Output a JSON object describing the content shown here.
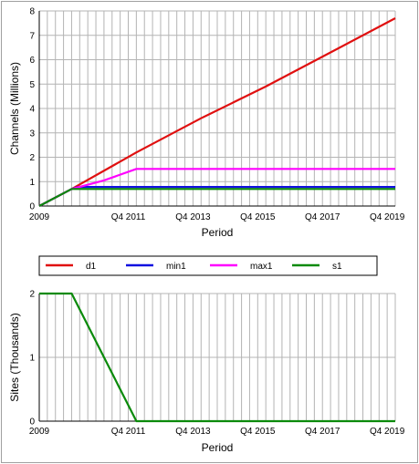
{
  "chart_data": [
    {
      "type": "line",
      "title": "",
      "xlabel": "Period",
      "ylabel": "Channels  (Millions)",
      "xlim": [
        2009,
        2020
      ],
      "ylim": [
        0,
        8
      ],
      "y_ticks": [
        "0",
        "1",
        "2",
        "3",
        "4",
        "5",
        "6",
        "7",
        "8"
      ],
      "x_tick_labels": [
        {
          "at": 2009,
          "label": "2009"
        },
        {
          "at": 2011.75,
          "label": "Q4 2011"
        },
        {
          "at": 2013.75,
          "label": "Q4 2013"
        },
        {
          "at": 2015.75,
          "label": "Q4 2015"
        },
        {
          "at": 2017.75,
          "label": "Q4 2017"
        },
        {
          "at": 2019.75,
          "label": "Q4 2019"
        }
      ],
      "grid": true,
      "series": [
        {
          "name": "d1",
          "color": "#e01010",
          "x": [
            2009,
            2010,
            2012,
            2014,
            2016,
            2018,
            2020
          ],
          "y": [
            0,
            0.7,
            2.2,
            3.6,
            4.9,
            6.3,
            7.7
          ]
        },
        {
          "name": "min1",
          "color": "#1010e0",
          "x": [
            2009,
            2010,
            2010.2,
            2020
          ],
          "y": [
            0,
            0.7,
            0.78,
            0.78
          ]
        },
        {
          "name": "max1",
          "color": "#ff00ff",
          "x": [
            2009,
            2010,
            2011,
            2012,
            2020
          ],
          "y": [
            0,
            0.7,
            1.05,
            1.52,
            1.52
          ]
        },
        {
          "name": "s1",
          "color": "#0a8a0a",
          "x": [
            2009,
            2010,
            2020
          ],
          "y": [
            0,
            0.7,
            0.7
          ]
        }
      ]
    },
    {
      "type": "line",
      "title": "",
      "xlabel": "Period",
      "ylabel": "Sites  (Thousands)",
      "xlim": [
        2009,
        2020
      ],
      "ylim": [
        0,
        2
      ],
      "y_ticks": [
        "0",
        "1",
        "2"
      ],
      "x_tick_labels": [
        {
          "at": 2009,
          "label": "2009"
        },
        {
          "at": 2011.75,
          "label": "Q4 2011"
        },
        {
          "at": 2013.75,
          "label": "Q4 2013"
        },
        {
          "at": 2015.75,
          "label": "Q4 2015"
        },
        {
          "at": 2017.75,
          "label": "Q4 2017"
        },
        {
          "at": 2019.75,
          "label": "Q4 2019"
        }
      ],
      "grid": true,
      "series": [
        {
          "name": "s1",
          "color": "#0a8a0a",
          "x": [
            2009,
            2010,
            2012,
            2020
          ],
          "y": [
            2,
            2,
            0,
            0
          ]
        }
      ]
    }
  ],
  "legend": {
    "placement": "between-charts",
    "items": [
      {
        "label": "d1",
        "color": "#e01010"
      },
      {
        "label": "min1",
        "color": "#1010e0"
      },
      {
        "label": "max1",
        "color": "#ff00ff"
      },
      {
        "label": "s1",
        "color": "#0a8a0a"
      }
    ]
  }
}
